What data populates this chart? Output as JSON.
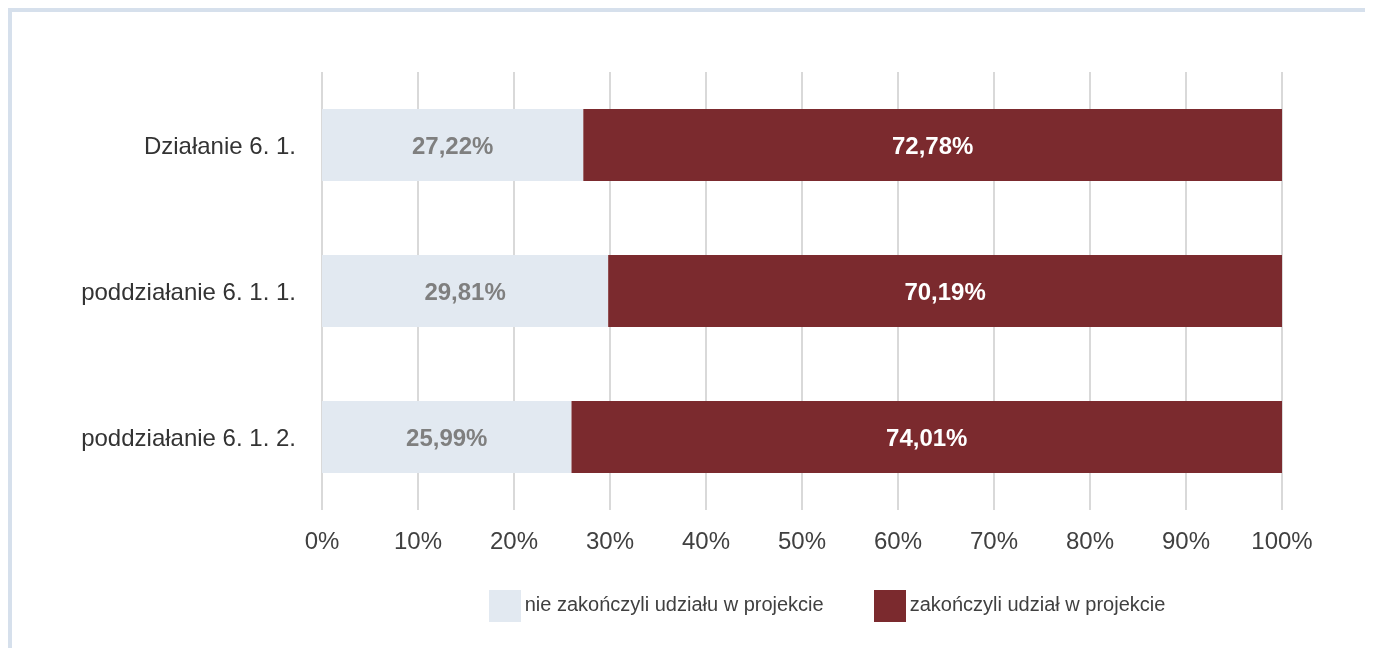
{
  "chart_data": {
    "type": "bar",
    "orientation": "horizontal",
    "stacked": true,
    "categories": [
      "Działanie 6. 1.",
      "poddziałanie 6. 1. 1.",
      "poddziałanie 6. 1. 2."
    ],
    "series": [
      {
        "name": "nie zakończyli udziału w projekcie",
        "color": "#e2e9f1",
        "values": [
          27.22,
          29.81,
          25.99
        ],
        "value_labels": [
          "27,22%",
          "29,81%",
          "25,99%"
        ]
      },
      {
        "name": "zakończyli udział w projekcie",
        "color": "#7b2a2e",
        "values": [
          72.78,
          70.19,
          74.01
        ],
        "value_labels": [
          "72,78%",
          "70,19%",
          "74,01%"
        ]
      }
    ],
    "xlim": [
      0,
      100
    ],
    "xticks": [
      {
        "value": 0,
        "label": "0%"
      },
      {
        "value": 10,
        "label": "10%"
      },
      {
        "value": 20,
        "label": "20%"
      },
      {
        "value": 30,
        "label": "30%"
      },
      {
        "value": 40,
        "label": "40%"
      },
      {
        "value": 50,
        "label": "50%"
      },
      {
        "value": 60,
        "label": "60%"
      },
      {
        "value": 70,
        "label": "70%"
      },
      {
        "value": 80,
        "label": "80%"
      },
      {
        "value": 90,
        "label": "90%"
      },
      {
        "value": 100,
        "label": "100%"
      }
    ],
    "grid": "x",
    "legend": "bottom"
  }
}
